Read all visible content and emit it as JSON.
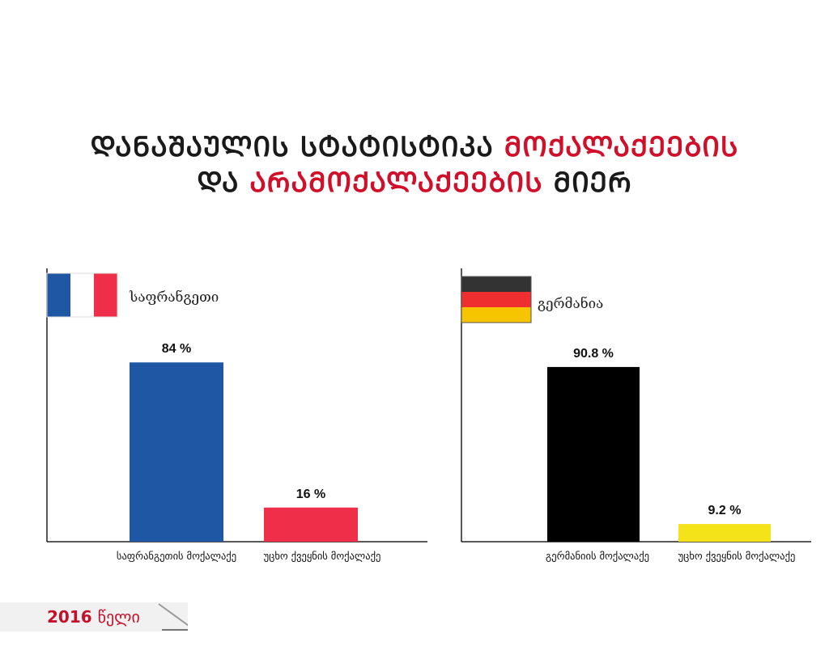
{
  "title": {
    "line1_black": "ᲓᲐᲜᲐᲨᲐᲣᲚᲘᲡ ᲡᲢᲐᲢᲘᲡᲢᲘᲙᲐ",
    "line1_red": "ᲛᲝᲥᲐᲚᲐᲥᲔᲔᲑᲘᲡ",
    "line2_black_a": "ᲓᲐ",
    "line2_red": "ᲐᲠᲐᲛᲝᲥᲐᲚᲐᲥᲔᲔᲑᲘᲡ",
    "line2_black_b": "ᲛᲘᲔᲠ"
  },
  "footer": {
    "year": "2016",
    "word": "წელი"
  },
  "colors": {
    "title_red": "#d0102a",
    "france_blue": "#1f57a5",
    "france_red": "#ef2f4a",
    "germany_black": "#000000",
    "germany_yellow": "#f5e31a"
  },
  "chart_data": [
    {
      "type": "bar",
      "country": "საფრანგეთი",
      "flag": "france-flag",
      "categories": [
        "საფრანგეთის მოქალაქე",
        "უცხო ქვეყნის მოქალაქე"
      ],
      "values": [
        84,
        16
      ],
      "value_labels": [
        "84 %",
        "16 %"
      ],
      "bar_colors": [
        "#1f57a5",
        "#ef2f4a"
      ],
      "ylim": [
        0,
        100
      ]
    },
    {
      "type": "bar",
      "country": "გერმანია",
      "flag": "germany-flag",
      "categories": [
        "გერმანიის მოქალაქე",
        "უცხო ქვეყნის მოქალაქე"
      ],
      "values": [
        90.8,
        9.2
      ],
      "value_labels": [
        "90.8 %",
        "9.2 %"
      ],
      "bar_colors": [
        "#000000",
        "#f5e31a"
      ],
      "ylim": [
        0,
        100
      ]
    }
  ]
}
